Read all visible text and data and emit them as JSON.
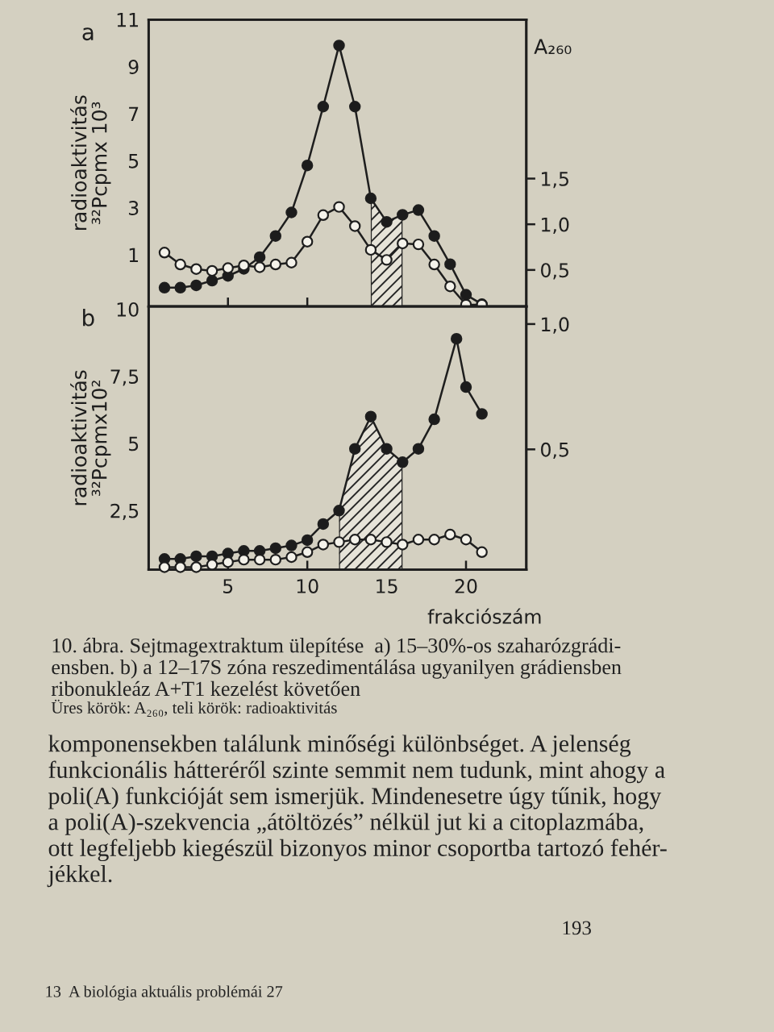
{
  "chart_data": [
    {
      "type": "line",
      "title": "a",
      "ylabel": "radioaktivitás\n³²Pcpmx 10³",
      "y2label": "A₂₆₀",
      "x": [
        1,
        2,
        3,
        4,
        5,
        6,
        7,
        8,
        9,
        10,
        11,
        12,
        13,
        14,
        15,
        16,
        17,
        18,
        19,
        20,
        21
      ],
      "series": [
        {
          "color": "#1c1c1c",
          "values": [
            -0.4,
            -0.4,
            -0.3,
            -0.1,
            0.1,
            0.4,
            0.9,
            1.8,
            2.8,
            4.8,
            7.3,
            9.9,
            7.3,
            3.4,
            2.4,
            2.7,
            2.9,
            1.8,
            0.6,
            -0.7,
            -1.1
          ]
        },
        {
          "color": "#f4f2ea",
          "axis": "y2",
          "values": [
            0.69,
            0.56,
            0.51,
            0.49,
            0.52,
            0.55,
            0.53,
            0.56,
            0.58,
            0.81,
            1.1,
            1.19,
            0.98,
            0.72,
            0.61,
            0.79,
            0.78,
            0.56,
            0.32,
            0.12,
            0.12
          ]
        }
      ],
      "xlim": [
        0,
        23.8
      ],
      "xticks": [
        5,
        10,
        15,
        20
      ],
      "ylim": [
        -1.2,
        11
      ],
      "yticks": [
        1,
        3,
        5,
        7,
        9,
        11
      ],
      "y2lim": [
        0.1,
        3.24
      ],
      "y2ticks": [
        {
          "value": 0.5,
          "label": "0,5"
        },
        {
          "value": 1.0,
          "label": "1,0"
        },
        {
          "value": 1.5,
          "label": "1,5"
        }
      ],
      "bands": [
        {
          "axis": "x",
          "from": 14,
          "to": 16,
          "color": "#262626"
        }
      ],
      "tick_labels": "y",
      "marker": "circle",
      "line_style": "solid"
    },
    {
      "type": "line",
      "title": "b",
      "ylabel": "radioaktivitás\n³²Pcpmx10²",
      "xlabel": "frakciószám",
      "x": [
        1,
        2,
        3,
        4,
        5,
        6,
        7,
        8,
        9,
        10,
        11,
        12,
        13,
        14,
        15,
        16,
        17,
        18,
        19,
        20,
        21
      ],
      "series": [
        {
          "color": "#1c1c1c",
          "x": [
            1,
            2,
            3,
            4,
            5,
            6,
            7,
            8,
            9,
            10,
            11,
            12,
            13,
            14,
            15,
            16,
            17,
            18,
            19.4,
            20,
            21
          ],
          "values": [
            0.7,
            0.7,
            0.8,
            0.8,
            0.9,
            1.0,
            1.0,
            1.1,
            1.2,
            1.4,
            2.0,
            2.5,
            4.8,
            6.0,
            4.8,
            4.3,
            4.8,
            5.9,
            8.9,
            7.1,
            6.1
          ]
        },
        {
          "color": "#f4f2ea",
          "axis": "y2",
          "values": [
            0.03,
            0.03,
            0.03,
            0.04,
            0.05,
            0.06,
            0.06,
            0.06,
            0.07,
            0.09,
            0.12,
            0.13,
            0.14,
            0.14,
            0.13,
            0.12,
            0.14,
            0.14,
            0.16,
            0.14,
            0.09
          ]
        }
      ],
      "xlim": [
        0,
        23.8
      ],
      "xticks": [
        5,
        10,
        15,
        20
      ],
      "ylim": [
        0.3,
        10.1
      ],
      "yticks": [
        {
          "value": 2.5,
          "label": "2,5"
        },
        5,
        {
          "value": 7.5,
          "label": "7,5"
        },
        10
      ],
      "y2lim": [
        0.02,
        1.07
      ],
      "y2ticks": [
        {
          "value": 0.5,
          "label": "0,5"
        },
        {
          "value": 1.0,
          "label": "1,0"
        }
      ],
      "bands": [
        {
          "axis": "x",
          "from": 12,
          "to": 16,
          "color": "#262626"
        }
      ],
      "marker": "circle",
      "line_style": "solid",
      "annotations": [
        "10. ábra. Sejtmagextraktum ülepítése  a) 15–30%-os szaharózgrádi-\nensben. b) a 12–17S zóna reszedimentálása ugyanilyen grádiensben\nribonukleáz A+T1 kezelést követően",
        "Üres körök: A₂₆₀, teli körök: radioaktivitás",
        "komponensekben találunk minőségi különbséget. A jelenség\nfunkcionális hátteréről szinte semmit nem tudunk, mint ahogy a\npoli(A) funkcióját sem ismerjük. Mindenesetre úgy tűnik, hogy\na poli(A)-szekvencia „átöltözés” nélkül jut ki a citoplazmába,\nott legfeljebb kiegészül bizonyos minor csoportba tartozó fehér-\njékkel.",
        "193",
        "13  A biológia aktuális problémái 27"
      ]
    }
  ]
}
